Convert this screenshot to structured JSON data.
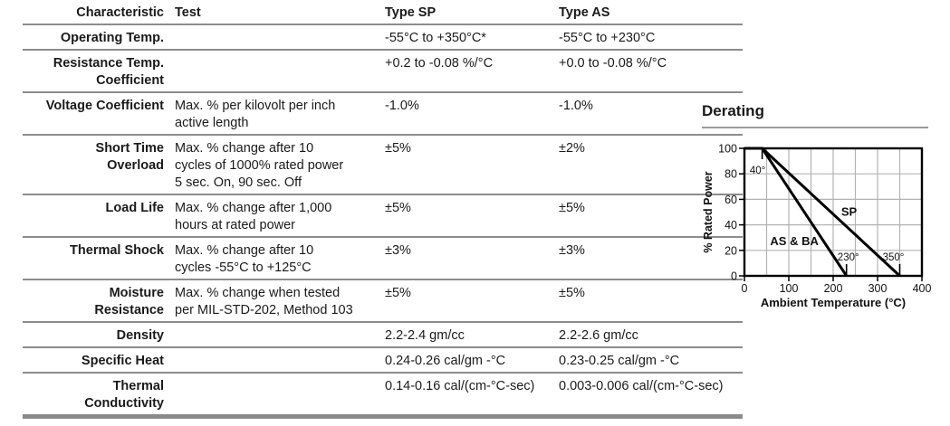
{
  "table": {
    "headers": {
      "characteristic": "Characteristic",
      "test": "Test",
      "type_sp": "Type SP",
      "type_as": "Type AS"
    },
    "rows": [
      {
        "characteristic": "Operating Temp.",
        "test": "",
        "sp": "-55°C to +350°C*",
        "as": "-55°C to +230°C"
      },
      {
        "characteristic": "Resistance Temp.\nCoefficient",
        "test": "",
        "sp": "+0.2 to -0.08 %/°C",
        "as": "+0.0 to -0.08 %/°C"
      },
      {
        "characteristic": "Voltage Coefficient",
        "test": "Max. % per kilovolt per inch\nactive length",
        "sp": "-1.0%",
        "as": "-1.0%"
      },
      {
        "characteristic": "Short Time\nOverload",
        "test": "Max. % change after 10\ncycles of 1000% rated power\n5 sec. On, 90 sec. Off",
        "sp": "±5%",
        "as": "±2%"
      },
      {
        "characteristic": "Load Life",
        "test": "Max. % change after 1,000\nhours at rated power",
        "sp": "±5%",
        "as": "±5%"
      },
      {
        "characteristic": "Thermal Shock",
        "test": "Max. % change after 10\ncycles -55°C to +125°C",
        "sp": "±3%",
        "as": "±3%"
      },
      {
        "characteristic": "Moisture\nResistance",
        "test": "Max. % change when tested\nper MIL-STD-202, Method 103",
        "sp": "±5%",
        "as": "±5%"
      },
      {
        "characteristic": "Density",
        "test": "",
        "sp": "2.2-2.4 gm/cc",
        "as": "2.2-2.6 gm/cc"
      },
      {
        "characteristic": "Specific Heat",
        "test": "",
        "sp": "0.24-0.26 cal/gm -°C",
        "as": "0.23-0.25 cal/gm -°C"
      },
      {
        "characteristic": "Thermal\nConductivity",
        "test": "",
        "sp": "0.14-0.16 cal/(cm-°C-sec)",
        "as": "0.003-0.006 cal/(cm-°C-sec)"
      }
    ]
  },
  "chart_data": {
    "type": "line",
    "title": "Derating",
    "xlabel": "Ambient Temperature (°C)",
    "ylabel": "% Rated Power",
    "xlim": [
      0,
      400
    ],
    "ylim": [
      0,
      100
    ],
    "xticks": [
      0,
      100,
      200,
      300,
      400
    ],
    "yticks": [
      0,
      20,
      40,
      60,
      80,
      100
    ],
    "x_grid_step": 50,
    "y_grid_step": 20,
    "grid": true,
    "legend_position": "inline-labels",
    "series": [
      {
        "name": "SP",
        "points": [
          [
            0,
            100
          ],
          [
            40,
            100
          ],
          [
            350,
            0
          ]
        ],
        "label": {
          "text": "SP",
          "x": 218,
          "y": 47
        }
      },
      {
        "name": "AS & BA",
        "points": [
          [
            0,
            100
          ],
          [
            40,
            100
          ],
          [
            230,
            0
          ]
        ],
        "label": {
          "text": "AS & BA",
          "x": 58,
          "y": 24
        }
      }
    ],
    "annotations": [
      {
        "text": "40°",
        "x": 40,
        "y": 80,
        "dx": -5,
        "tick": "top"
      },
      {
        "text": "230°",
        "x": 230,
        "y": 12,
        "dx": 2,
        "tick": "bottom"
      },
      {
        "text": "350°",
        "x": 350,
        "y": 12,
        "dx": -7,
        "tick": "bottom"
      }
    ]
  },
  "colors": {
    "rule": "#8c8c8c",
    "thick_rule": "#8a8a8a",
    "grid": "#b3b3b3",
    "line": "#000000",
    "text": "#1a1a1a"
  }
}
